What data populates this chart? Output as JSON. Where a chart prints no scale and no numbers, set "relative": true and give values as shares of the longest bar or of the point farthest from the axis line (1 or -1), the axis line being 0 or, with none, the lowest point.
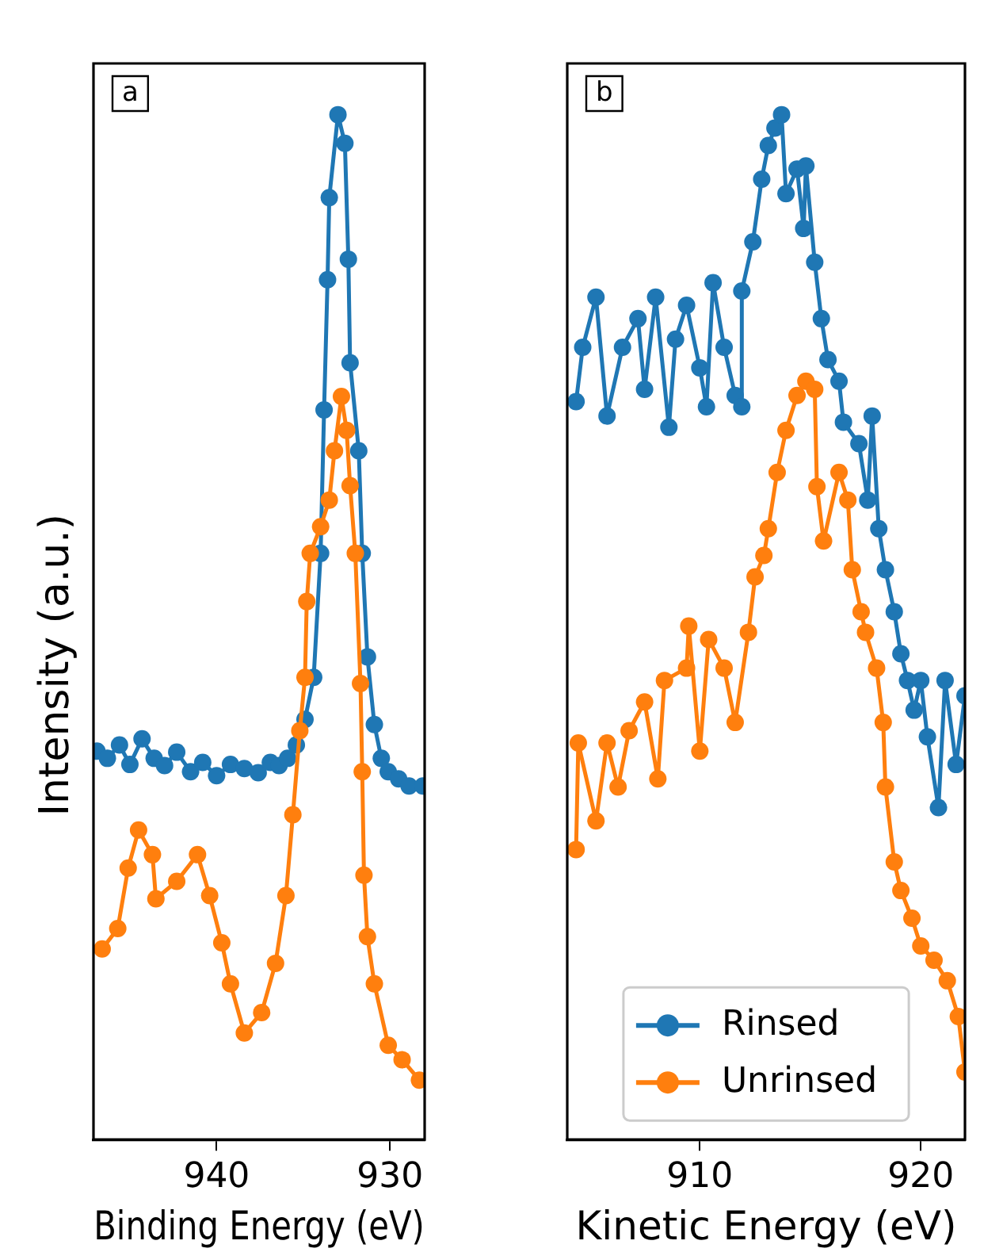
{
  "chart_data": [
    {
      "type": "line",
      "xlabel": "Binding Energy (eV)",
      "ylabel": "Intensity (a.u.)",
      "annotations": [
        "a"
      ],
      "relative": true,
      "marker": "circle",
      "line_style": "solid",
      "xlim": [
        947.1,
        928
      ],
      "xticks": [
        940,
        930
      ],
      "series": [
        {
          "color": "#1f77b4",
          "x": [
            946.9,
            946.3,
            945.6,
            945.0,
            944.3,
            943.6,
            943.0,
            942.3,
            941.5,
            940.8,
            940.0,
            939.2,
            938.4,
            937.6,
            936.9,
            936.4,
            935.9,
            935.4,
            934.9,
            934.4,
            934.0,
            933.8,
            933.6,
            933.5,
            933.0,
            932.6,
            932.4,
            932.3,
            931.8,
            931.6,
            931.3,
            930.9,
            930.5,
            930.1,
            929.5,
            928.9,
            928.1
          ],
          "values": [
            0.379,
            0.372,
            0.385,
            0.366,
            0.391,
            0.372,
            0.365,
            0.378,
            0.359,
            0.368,
            0.355,
            0.366,
            0.362,
            0.358,
            0.368,
            0.365,
            0.372,
            0.385,
            0.41,
            0.451,
            0.572,
            0.712,
            0.839,
            0.919,
            1.0,
            0.972,
            0.859,
            0.758,
            0.672,
            0.572,
            0.471,
            0.405,
            0.372,
            0.359,
            0.352,
            0.345,
            0.345
          ]
        },
        {
          "color": "#ff7f0e",
          "x": [
            946.6,
            945.7,
            945.1,
            944.5,
            943.7,
            943.5,
            942.3,
            941.1,
            940.4,
            939.7,
            939.2,
            938.4,
            937.4,
            936.6,
            936.0,
            935.6,
            935.2,
            934.9,
            934.8,
            934.6,
            934.0,
            933.5,
            933.2,
            932.8,
            932.5,
            932.3,
            932.0,
            931.7,
            931.6,
            931.5,
            931.3,
            930.9,
            930.1,
            929.3,
            928.3
          ],
          "values": [
            0.186,
            0.206,
            0.265,
            0.302,
            0.278,
            0.235,
            0.252,
            0.278,
            0.238,
            0.192,
            0.152,
            0.104,
            0.124,
            0.172,
            0.238,
            0.317,
            0.399,
            0.451,
            0.525,
            0.572,
            0.598,
            0.624,
            0.672,
            0.725,
            0.692,
            0.638,
            0.572,
            0.445,
            0.359,
            0.258,
            0.198,
            0.152,
            0.092,
            0.078,
            0.058
          ]
        }
      ]
    },
    {
      "type": "line",
      "xlabel": "Kinetic Energy (eV)",
      "annotations": [
        "b"
      ],
      "relative": true,
      "marker": "circle",
      "line_style": "solid",
      "legend": "bottom",
      "xlim": [
        904.0,
        922.0
      ],
      "xticks": [
        910,
        920
      ],
      "series": [
        {
          "name": "Rinsed",
          "color": "#1f77b4",
          "x": [
            904.4,
            904.7,
            905.3,
            905.8,
            906.5,
            907.2,
            907.5,
            908.0,
            908.6,
            908.9,
            909.4,
            910.0,
            910.3,
            910.6,
            911.1,
            911.6,
            911.9,
            911.9,
            912.4,
            912.8,
            913.1,
            913.4,
            913.7,
            913.9,
            914.4,
            914.7,
            914.8,
            915.2,
            915.5,
            915.8,
            916.3,
            916.5,
            917.2,
            917.6,
            917.8,
            918.1,
            918.4,
            918.8,
            919.1,
            919.4,
            919.7,
            920.0,
            920.3,
            920.8,
            921.1,
            921.6,
            922.0
          ],
          "values": [
            0.72,
            0.773,
            0.822,
            0.706,
            0.773,
            0.801,
            0.732,
            0.822,
            0.695,
            0.781,
            0.814,
            0.753,
            0.715,
            0.836,
            0.773,
            0.726,
            0.715,
            0.828,
            0.876,
            0.937,
            0.97,
            0.987,
            1.0,
            0.923,
            0.947,
            0.889,
            0.95,
            0.856,
            0.801,
            0.761,
            0.74,
            0.7,
            0.679,
            0.624,
            0.706,
            0.596,
            0.556,
            0.515,
            0.474,
            0.448,
            0.419,
            0.448,
            0.393,
            0.324,
            0.448,
            0.366,
            0.433
          ]
        },
        {
          "name": "Unrinsed",
          "color": "#ff7f0e",
          "x": [
            904.4,
            904.5,
            905.3,
            905.8,
            906.3,
            906.8,
            907.5,
            908.1,
            908.4,
            909.4,
            909.5,
            910.0,
            910.4,
            911.1,
            911.6,
            912.2,
            912.5,
            912.9,
            913.1,
            913.5,
            913.9,
            914.4,
            914.8,
            915.2,
            915.3,
            915.6,
            916.3,
            916.7,
            916.9,
            917.3,
            917.5,
            918.0,
            918.3,
            918.4,
            918.8,
            919.1,
            919.6,
            920.0,
            920.6,
            921.2,
            921.7,
            922.0
          ],
          "values": [
            0.283,
            0.387,
            0.311,
            0.387,
            0.344,
            0.399,
            0.427,
            0.352,
            0.448,
            0.46,
            0.501,
            0.379,
            0.488,
            0.46,
            0.407,
            0.495,
            0.549,
            0.57,
            0.596,
            0.651,
            0.692,
            0.726,
            0.74,
            0.732,
            0.637,
            0.584,
            0.651,
            0.624,
            0.556,
            0.515,
            0.495,
            0.46,
            0.407,
            0.344,
            0.271,
            0.243,
            0.216,
            0.189,
            0.175,
            0.155,
            0.12,
            0.066
          ]
        }
      ]
    }
  ]
}
